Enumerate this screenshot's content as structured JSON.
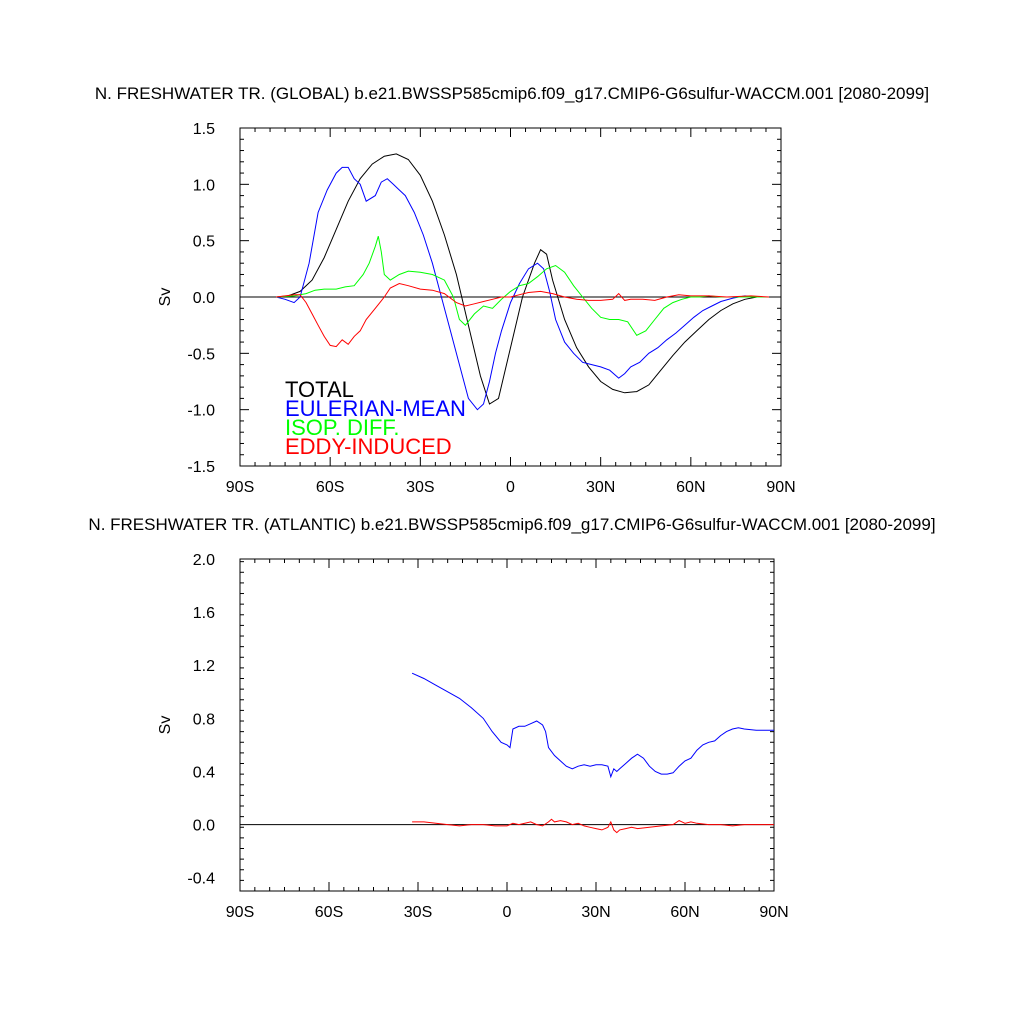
{
  "chart_data": [
    {
      "type": "line",
      "title": "N. FRESHWATER TR. (GLOBAL) b.e21.BWSSP585cmip6.f09_g17.CMIP6-G6sulfur-WACCM.001 [2080-2099]",
      "xlabel": "",
      "ylabel": "Sv",
      "xlim": [
        -90,
        90
      ],
      "ylim": [
        -1.5,
        1.5
      ],
      "xticks": [
        -90,
        -60,
        -30,
        0,
        30,
        60,
        90
      ],
      "xticklabels": [
        "90S",
        "60S",
        "30S",
        "0",
        "30N",
        "60N",
        "90N"
      ],
      "yticks": [
        -1.5,
        -1.0,
        -0.5,
        0.0,
        0.5,
        1.0,
        1.5
      ],
      "yticklabels": [
        "-1.5",
        "-1.0",
        "-0.5",
        "0.0",
        "0.5",
        "1.0",
        "1.5"
      ],
      "grid": false,
      "zero_line": true,
      "legend": {
        "placement": "bottom-left"
      },
      "series": [
        {
          "name": "TOTAL",
          "color": "#000000",
          "x": [
            -78,
            -74,
            -70,
            -66,
            -62,
            -58,
            -54,
            -50,
            -46,
            -42,
            -38,
            -34,
            -30,
            -26,
            -22,
            -18,
            -14,
            -10,
            -7,
            -4,
            0,
            4,
            8,
            10,
            12,
            14,
            18,
            22,
            26,
            30,
            34,
            38,
            42,
            46,
            50,
            54,
            58,
            62,
            66,
            70,
            74,
            78,
            82,
            86
          ],
          "values": [
            0,
            0.01,
            0.05,
            0.15,
            0.35,
            0.6,
            0.85,
            1.05,
            1.18,
            1.25,
            1.27,
            1.22,
            1.08,
            0.85,
            0.55,
            0.2,
            -0.25,
            -0.7,
            -0.95,
            -0.9,
            -0.45,
            0.0,
            0.3,
            0.42,
            0.38,
            0.15,
            -0.2,
            -0.45,
            -0.62,
            -0.75,
            -0.82,
            -0.85,
            -0.84,
            -0.78,
            -0.65,
            -0.52,
            -0.4,
            -0.3,
            -0.2,
            -0.12,
            -0.06,
            -0.02,
            0,
            0
          ]
        },
        {
          "name": "EULERIAN-MEAN",
          "color": "#0000ff",
          "x": [
            -78,
            -75,
            -72,
            -70,
            -67,
            -64,
            -61,
            -58,
            -56,
            -54,
            -52,
            -50,
            -48,
            -45,
            -43,
            -41,
            -39,
            -37,
            -35,
            -32,
            -29,
            -26,
            -23,
            -20,
            -17,
            -14,
            -11,
            -9,
            -7,
            -5,
            -3,
            0,
            3,
            6,
            9,
            11,
            13,
            15,
            18,
            21,
            24,
            27,
            30,
            33,
            36,
            38,
            40,
            43,
            46,
            49,
            52,
            55,
            58,
            61,
            64,
            67,
            70,
            74,
            78,
            82,
            86
          ],
          "values": [
            0,
            -0.02,
            -0.05,
            0.0,
            0.3,
            0.75,
            0.95,
            1.1,
            1.15,
            1.15,
            1.05,
            1.0,
            0.85,
            0.9,
            1.02,
            1.05,
            1.0,
            0.95,
            0.9,
            0.75,
            0.55,
            0.3,
            0.0,
            -0.3,
            -0.6,
            -0.9,
            -1.0,
            -0.95,
            -0.75,
            -0.5,
            -0.3,
            -0.05,
            0.12,
            0.25,
            0.3,
            0.25,
            0.05,
            -0.2,
            -0.4,
            -0.5,
            -0.58,
            -0.6,
            -0.62,
            -0.65,
            -0.72,
            -0.68,
            -0.62,
            -0.58,
            -0.5,
            -0.45,
            -0.38,
            -0.32,
            -0.25,
            -0.18,
            -0.12,
            -0.08,
            -0.04,
            -0.01,
            0.01,
            0,
            0
          ]
        },
        {
          "name": "ISOP. DIFF.",
          "color": "#00ff00",
          "x": [
            -78,
            -72,
            -68,
            -65,
            -62,
            -58,
            -55,
            -52,
            -49,
            -47,
            -45,
            -44,
            -43,
            -42,
            -40,
            -37,
            -34,
            -30,
            -26,
            -22,
            -19,
            -17,
            -15,
            -12,
            -9,
            -6,
            -3,
            0,
            3,
            6,
            9,
            12,
            15,
            18,
            21,
            24,
            27,
            30,
            33,
            36,
            39,
            42,
            45,
            48,
            51,
            54,
            57,
            60,
            63,
            66,
            70,
            74,
            80,
            86
          ],
          "values": [
            0,
            0.01,
            0.03,
            0.06,
            0.07,
            0.07,
            0.09,
            0.1,
            0.2,
            0.3,
            0.45,
            0.54,
            0.4,
            0.2,
            0.15,
            0.2,
            0.23,
            0.22,
            0.2,
            0.15,
            0.0,
            -0.2,
            -0.25,
            -0.15,
            -0.08,
            -0.1,
            -0.02,
            0.05,
            0.1,
            0.12,
            0.18,
            0.25,
            0.28,
            0.22,
            0.1,
            0.0,
            -0.1,
            -0.18,
            -0.2,
            -0.2,
            -0.22,
            -0.34,
            -0.3,
            -0.2,
            -0.1,
            -0.05,
            -0.02,
            0.0,
            0.0,
            0.01,
            0.0,
            0.0,
            0.0,
            0
          ]
        },
        {
          "name": "EDDY-INDUCED",
          "color": "#ff0000",
          "x": [
            -78,
            -72,
            -70,
            -68,
            -66,
            -64,
            -62,
            -60,
            -58,
            -56,
            -54,
            -52,
            -50,
            -48,
            -45,
            -42,
            -40,
            -37,
            -34,
            -30,
            -26,
            -22,
            -18,
            -15,
            -12,
            -9,
            -6,
            -3,
            0,
            3,
            6,
            10,
            14,
            18,
            22,
            26,
            30,
            34,
            36,
            38,
            40,
            44,
            48,
            52,
            56,
            60,
            66,
            72,
            80,
            86
          ],
          "values": [
            0,
            0.02,
            0.02,
            -0.05,
            -0.15,
            -0.25,
            -0.35,
            -0.43,
            -0.44,
            -0.38,
            -0.42,
            -0.35,
            -0.3,
            -0.2,
            -0.1,
            0.0,
            0.08,
            0.12,
            0.1,
            0.07,
            0.06,
            0.03,
            -0.05,
            -0.08,
            -0.06,
            -0.04,
            -0.02,
            0.0,
            0.0,
            0.02,
            0.04,
            0.05,
            0.03,
            0.0,
            -0.02,
            -0.03,
            -0.03,
            -0.02,
            0.03,
            -0.03,
            -0.02,
            -0.02,
            -0.03,
            0.0,
            0.02,
            0.01,
            0.01,
            0.0,
            0.01,
            0
          ]
        }
      ]
    },
    {
      "type": "line",
      "title": "N. FRESHWATER TR. (ATLANTIC) b.e21.BWSSP585cmip6.f09_g17.CMIP6-G6sulfur-WACCM.001 [2080-2099]",
      "xlabel": "",
      "ylabel": "Sv",
      "xlim": [
        -90,
        90
      ],
      "ylim": [
        -0.5,
        2.0
      ],
      "xticks": [
        -90,
        -60,
        -30,
        0,
        30,
        60,
        90
      ],
      "xticklabels": [
        "90S",
        "60S",
        "30S",
        "0",
        "30N",
        "60N",
        "90N"
      ],
      "yticks": [
        -0.4,
        0.0,
        0.4,
        0.8,
        1.2,
        1.6,
        2.0
      ],
      "yticklabels": [
        "-0.4",
        "0.0",
        "0.4",
        "0.8",
        "1.2",
        "1.6",
        "2.0"
      ],
      "grid": false,
      "zero_line": true,
      "series": [
        {
          "color": "#0000ff",
          "x": [
            -32,
            -28,
            -24,
            -20,
            -16,
            -12,
            -8,
            -5,
            -2,
            0,
            1,
            2,
            4,
            6,
            8,
            10,
            12,
            13,
            14,
            16,
            18,
            20,
            22,
            24,
            26,
            28,
            30,
            32,
            34,
            35,
            36,
            37,
            38,
            40,
            42,
            44,
            46,
            48,
            50,
            52,
            54,
            56,
            58,
            60,
            62,
            64,
            66,
            68,
            70,
            72,
            74,
            76,
            78,
            80,
            84,
            88,
            90
          ],
          "values": [
            1.14,
            1.1,
            1.05,
            1.0,
            0.95,
            0.88,
            0.8,
            0.7,
            0.62,
            0.6,
            0.58,
            0.72,
            0.74,
            0.74,
            0.76,
            0.78,
            0.75,
            0.7,
            0.58,
            0.52,
            0.48,
            0.44,
            0.42,
            0.44,
            0.45,
            0.44,
            0.45,
            0.45,
            0.44,
            0.36,
            0.42,
            0.4,
            0.42,
            0.46,
            0.5,
            0.53,
            0.5,
            0.44,
            0.4,
            0.38,
            0.38,
            0.39,
            0.44,
            0.48,
            0.5,
            0.56,
            0.6,
            0.62,
            0.63,
            0.67,
            0.7,
            0.72,
            0.73,
            0.72,
            0.71,
            0.71,
            0.71
          ]
        },
        {
          "color": "#ff0000",
          "x": [
            -32,
            -28,
            -24,
            -20,
            -16,
            -12,
            -8,
            -4,
            0,
            2,
            4,
            6,
            8,
            10,
            12,
            14,
            15,
            16,
            18,
            20,
            22,
            24,
            26,
            28,
            30,
            32,
            34,
            35,
            36,
            37,
            38,
            40,
            42,
            44,
            48,
            52,
            56,
            58,
            60,
            62,
            64,
            68,
            72,
            76,
            80,
            84,
            88,
            90
          ],
          "values": [
            0.02,
            0.02,
            0.01,
            0.0,
            -0.01,
            0.0,
            0.0,
            -0.01,
            -0.01,
            0.01,
            0.0,
            0.01,
            0.02,
            0.0,
            -0.01,
            0.02,
            0.04,
            0.02,
            0.03,
            0.02,
            0.0,
            0.01,
            -0.01,
            -0.02,
            -0.03,
            -0.04,
            -0.02,
            0.02,
            -0.04,
            -0.06,
            -0.04,
            -0.03,
            -0.02,
            -0.03,
            -0.02,
            -0.01,
            0.0,
            0.03,
            0.01,
            0.02,
            0.01,
            0.0,
            0.0,
            -0.01,
            0.0,
            0.0,
            0.0,
            0.0
          ]
        }
      ]
    }
  ]
}
